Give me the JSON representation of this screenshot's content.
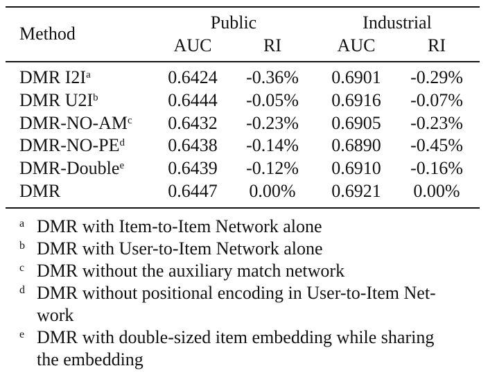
{
  "table": {
    "group_headers": [
      "Public",
      "Industrial"
    ],
    "columns": [
      "Method",
      "AUC",
      "RI",
      "AUC",
      "RI"
    ],
    "rows": [
      {
        "method": "DMR I2I",
        "mark": "a",
        "cells": [
          "0.6424",
          "-0.36%",
          "0.6901",
          "-0.29%"
        ]
      },
      {
        "method": "DMR U2I",
        "mark": "b",
        "cells": [
          "0.6444",
          "-0.05%",
          "0.6916",
          "-0.07%"
        ]
      },
      {
        "method": "DMR-NO-AM",
        "mark": "c",
        "cells": [
          "0.6432",
          "-0.23%",
          "0.6905",
          "-0.23%"
        ]
      },
      {
        "method": "DMR-NO-PE",
        "mark": "d",
        "cells": [
          "0.6438",
          "-0.14%",
          "0.6890",
          "-0.45%"
        ]
      },
      {
        "method": "DMR-Double",
        "mark": "e",
        "cells": [
          "0.6439",
          "-0.12%",
          "0.6910",
          "-0.16%"
        ]
      },
      {
        "method": "DMR",
        "mark": "",
        "cells": [
          "0.6447",
          "0.00%",
          "0.6921",
          "0.00%"
        ]
      }
    ]
  },
  "footnotes": [
    {
      "mark": "a",
      "lines": [
        "DMR with Item-to-Item Network alone"
      ]
    },
    {
      "mark": "b",
      "lines": [
        "DMR with User-to-Item Network alone"
      ]
    },
    {
      "mark": "c",
      "lines": [
        "DMR without the auxiliary match network"
      ]
    },
    {
      "mark": "d",
      "lines": [
        "DMR without positional encoding in User-to-Item Net-",
        "work"
      ]
    },
    {
      "mark": "e",
      "lines": [
        "DMR with double-sized item embedding while sharing",
        "the embedding"
      ]
    }
  ]
}
